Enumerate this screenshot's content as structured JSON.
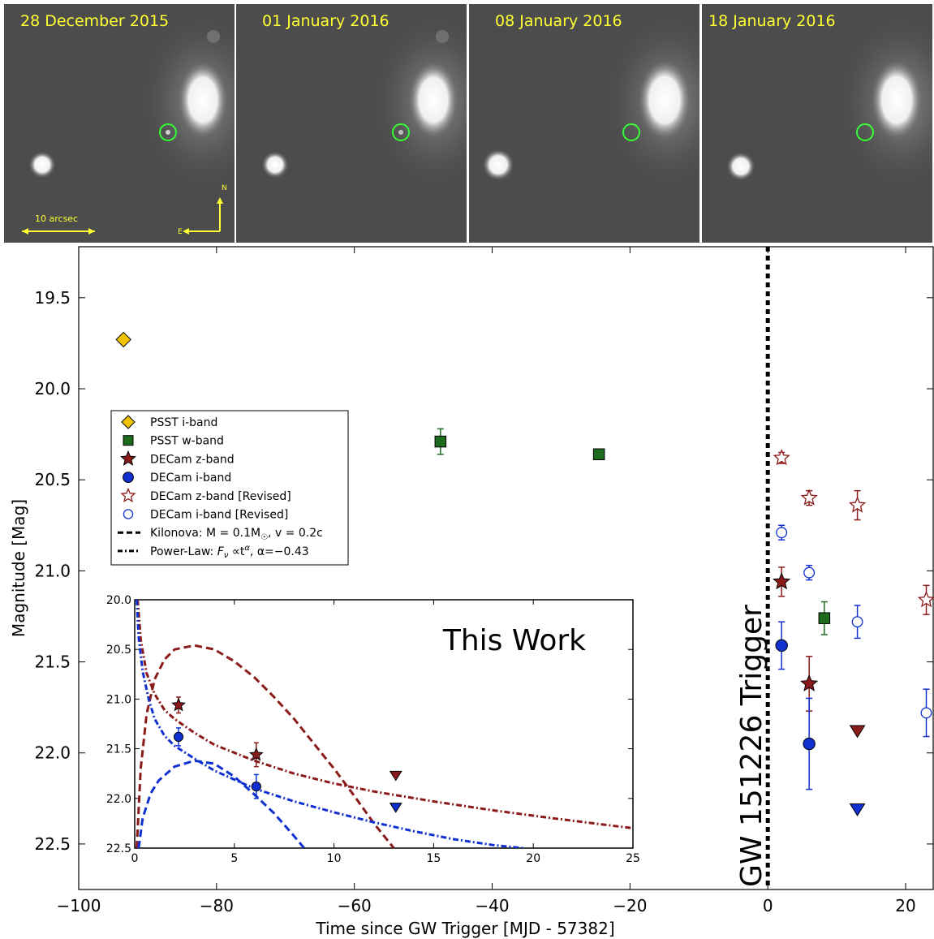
{
  "panels": [
    {
      "date": "28 December 2015",
      "transient_visible": true
    },
    {
      "date": "01 January 2016",
      "transient_visible": true
    },
    {
      "date": "08 January 2016",
      "transient_visible": false
    },
    {
      "date": "18 January 2016",
      "transient_visible": false
    }
  ],
  "image_labels": {
    "scale": "10 arcsec",
    "north": "N",
    "east": "E"
  },
  "colors": {
    "psst_i": "#f2c200",
    "psst_w": "#1e6b1e",
    "decam_z": "#8b1a1a",
    "decam_i": "#1030d0",
    "circle": "#33ff33",
    "label": "#ffff33"
  },
  "chart_data": [
    {
      "type": "scatter",
      "xlabel": "Time since GW Trigger [MJD - 57382]",
      "ylabel": "Magnitude [Mag]",
      "xlim": [
        -100,
        24
      ],
      "ylim": [
        22.75,
        19.22
      ],
      "y_inverted": true,
      "xticks": [
        -100,
        -80,
        -60,
        -40,
        -20,
        0,
        20
      ],
      "xtick_labels": [
        "−100",
        "−80",
        "−60",
        "−40",
        "−20",
        "0",
        "20"
      ],
      "yticks": [
        19.5,
        20.0,
        20.5,
        21.0,
        21.5,
        22.0,
        22.5
      ],
      "ytick_labels": [
        "19.5",
        "20.0",
        "20.5",
        "21.0",
        "21.5",
        "22.0",
        "22.5"
      ],
      "vline": {
        "x": 0,
        "label": "GW 151226 Trigger",
        "style": "dotted"
      },
      "legend": {
        "placement": "left",
        "entries": [
          {
            "label": "PSST i-band",
            "marker": "diamond",
            "color": "#f2c200"
          },
          {
            "label": "PSST w-band",
            "marker": "square",
            "color": "#1e6b1e"
          },
          {
            "label": "DECam z-band",
            "marker": "star",
            "color": "#8b1a1a"
          },
          {
            "label": "DECam i-band",
            "marker": "circle",
            "color": "#1030d0"
          },
          {
            "label": "DECam z-band [Revised]",
            "marker": "star-open",
            "color": "#8b1a1a"
          },
          {
            "label": "DECam i-band [Revised]",
            "marker": "circle-open",
            "color": "#1030d0"
          },
          {
            "label": "Kilonova: M = 0.1M",
            "sub": "☉",
            "tail": ", v = 0.2c",
            "marker": "dashed",
            "color": "#000000"
          },
          {
            "label": "Power-Law: ",
            "math": "F",
            "msub": "ν",
            "mrest": " ∝t",
            "msup": "α",
            "tail": ", α=−0.43",
            "marker": "dashdot",
            "color": "#000000"
          }
        ]
      },
      "series": [
        {
          "name": "PSST i-band",
          "marker": "diamond",
          "color": "#f2c200",
          "points": [
            {
              "x": -93.5,
              "y": 19.73
            }
          ]
        },
        {
          "name": "PSST w-band",
          "marker": "square",
          "color": "#1e6b1e",
          "points": [
            {
              "x": -47.5,
              "y": 20.29,
              "err": 0.07
            },
            {
              "x": -24.5,
              "y": 20.36,
              "err": 0.02
            },
            {
              "x": 8.2,
              "y": 21.26,
              "err": 0.09
            }
          ]
        },
        {
          "name": "DECam z-band",
          "marker": "star",
          "color": "#8b1a1a",
          "points": [
            {
              "x": 2.0,
              "y": 21.06,
              "err": 0.08
            },
            {
              "x": 6.0,
              "y": 21.62,
              "err": 0.15
            }
          ]
        },
        {
          "name": "DECam z-band limit",
          "marker": "triangle-down",
          "color": "#8b1a1a",
          "points": [
            {
              "x": 13.0,
              "y": 21.88
            }
          ]
        },
        {
          "name": "DECam i-band",
          "marker": "circle",
          "color": "#1030d0",
          "points": [
            {
              "x": 2.0,
              "y": 21.41,
              "err": 0.13
            },
            {
              "x": 6.0,
              "y": 21.95,
              "err": 0.25
            }
          ]
        },
        {
          "name": "DECam i-band limit",
          "marker": "triangle-down",
          "color": "#1030d0",
          "points": [
            {
              "x": 13.0,
              "y": 22.31
            }
          ]
        },
        {
          "name": "DECam z-band [Revised]",
          "marker": "star-open",
          "color": "#8b1a1a",
          "points": [
            {
              "x": 2.0,
              "y": 20.38,
              "err": 0.03
            },
            {
              "x": 6.0,
              "y": 20.6,
              "err": 0.04
            },
            {
              "x": 13.0,
              "y": 20.64,
              "err": 0.08
            },
            {
              "x": 23.0,
              "y": 21.16,
              "err": 0.08
            }
          ]
        },
        {
          "name": "DECam i-band [Revised]",
          "marker": "circle-open",
          "color": "#1030d0",
          "points": [
            {
              "x": 2.0,
              "y": 20.79,
              "err": 0.04
            },
            {
              "x": 6.0,
              "y": 21.01,
              "err": 0.04
            },
            {
              "x": 13.0,
              "y": 21.28,
              "err": 0.09
            },
            {
              "x": 23.0,
              "y": 21.78,
              "err": 0.13
            }
          ]
        }
      ]
    },
    {
      "type": "line",
      "annotation": "This Work",
      "xlim": [
        0,
        25
      ],
      "ylim": [
        22.5,
        20.0
      ],
      "y_inverted": true,
      "xticks": [
        0,
        5,
        10,
        15,
        20,
        25
      ],
      "xtick_labels": [
        "0",
        "5",
        "10",
        "15",
        "20",
        "25"
      ],
      "yticks": [
        20.0,
        20.5,
        21.0,
        21.5,
        22.0,
        22.5
      ],
      "ytick_labels": [
        "20.0",
        "20.5",
        "21.0",
        "21.5",
        "22.0",
        "22.5"
      ],
      "series": [
        {
          "kind": "kilonova",
          "style": "dashed",
          "color": "#8b1a1a",
          "x": [
            0.1,
            0.3,
            0.6,
            1.0,
            1.5,
            2.0,
            3.0,
            4.0,
            5.0,
            6.0,
            7.0,
            8.0,
            9.0,
            10.0,
            11.0,
            12.0,
            13.0
          ],
          "y": [
            22.5,
            21.7,
            21.15,
            20.8,
            20.6,
            20.5,
            20.46,
            20.5,
            20.62,
            20.78,
            20.98,
            21.2,
            21.45,
            21.7,
            21.97,
            22.25,
            22.5
          ]
        },
        {
          "kind": "kilonova",
          "style": "dashed",
          "color": "#1030d0",
          "x": [
            0.2,
            0.4,
            0.8,
            1.2,
            2.0,
            3.0,
            4.0,
            5.0,
            6.0,
            7.0,
            8.0,
            8.5
          ],
          "y": [
            22.5,
            22.2,
            21.95,
            21.82,
            21.68,
            21.62,
            21.65,
            21.78,
            21.96,
            22.15,
            22.38,
            22.5
          ]
        },
        {
          "kind": "power-law",
          "style": "dashdot",
          "color": "#8b1a1a",
          "x": [
            0.15,
            0.3,
            0.6,
            1.0,
            1.5,
            2.0,
            3.0,
            4.0,
            6.0,
            8.0,
            10.0,
            12.0,
            15.0,
            18.0,
            21.0,
            25.0
          ],
          "y": [
            20.0,
            20.4,
            20.74,
            20.95,
            21.11,
            21.2,
            21.34,
            21.46,
            21.62,
            21.75,
            21.85,
            21.93,
            22.03,
            22.12,
            22.2,
            22.3
          ]
        },
        {
          "kind": "power-law",
          "style": "dashdot",
          "color": "#1030d0",
          "x": [
            0.1,
            0.2,
            0.4,
            0.7,
            1.0,
            1.5,
            2.0,
            3.0,
            4.0,
            6.0,
            8.0,
            10.0,
            12.0,
            14.0,
            16.0,
            18.0,
            19.5
          ],
          "y": [
            20.0,
            20.38,
            20.72,
            21.0,
            21.2,
            21.37,
            21.47,
            21.6,
            21.72,
            21.9,
            22.03,
            22.14,
            22.24,
            22.33,
            22.41,
            22.47,
            22.5
          ]
        }
      ],
      "points": [
        {
          "marker": "star",
          "color": "#8b1a1a",
          "x": 2.2,
          "y": 21.06,
          "err": 0.08
        },
        {
          "marker": "star",
          "color": "#8b1a1a",
          "x": 6.1,
          "y": 21.56,
          "err": 0.12
        },
        {
          "marker": "circle",
          "color": "#1030d0",
          "x": 2.2,
          "y": 21.38,
          "err": 0.09
        },
        {
          "marker": "circle",
          "color": "#1030d0",
          "x": 6.1,
          "y": 21.88,
          "err": 0.12
        },
        {
          "marker": "triangle-down",
          "color": "#8b1a1a",
          "x": 13.1,
          "y": 21.77
        },
        {
          "marker": "triangle-down",
          "color": "#1030d0",
          "x": 13.1,
          "y": 22.09
        }
      ]
    }
  ]
}
